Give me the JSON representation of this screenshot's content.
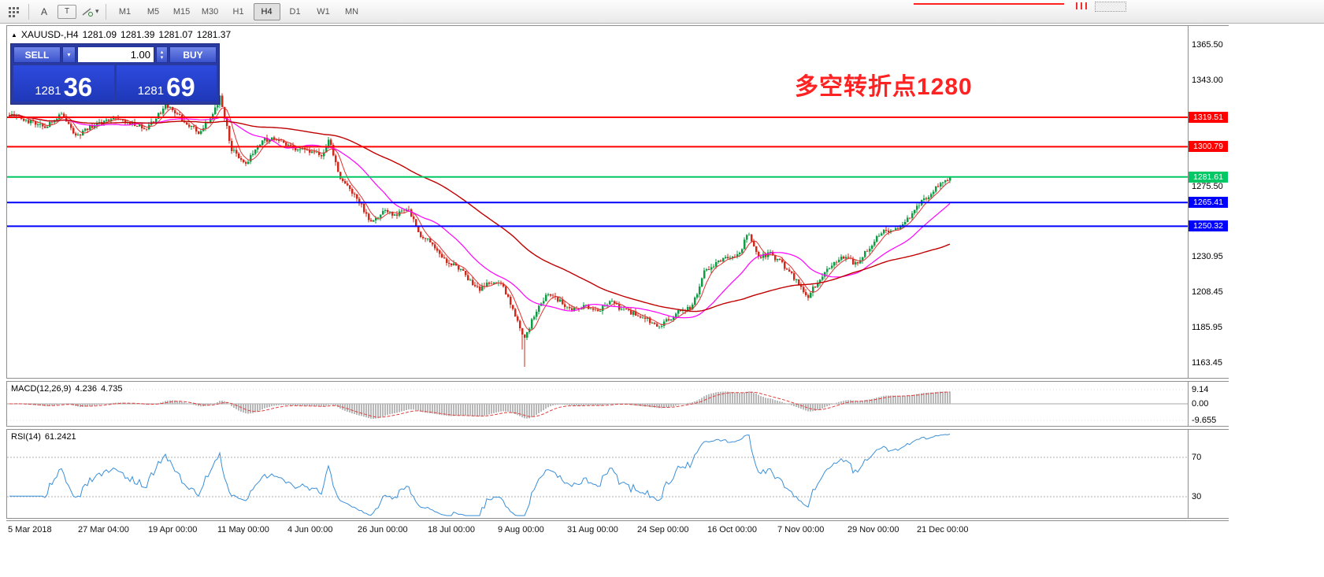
{
  "toolbar": {
    "tool_a": "A",
    "tool_t": "T",
    "timeframes": [
      "M1",
      "M5",
      "M15",
      "M30",
      "H1",
      "H4",
      "D1",
      "W1",
      "MN"
    ],
    "active_timeframe": "H4"
  },
  "icons": {
    "caret_down": "▾",
    "spin_up": "▴",
    "spin_down": "▾",
    "symbol_marker": "▲"
  },
  "chart": {
    "symbol": "XAUUSD-,H4",
    "quote_open": "1281.09",
    "quote_high": "1281.39",
    "quote_low": "1281.07",
    "quote_close": "1281.37",
    "annotation": "多空转折点1280",
    "annotation_color": "#FF2222",
    "trade_panel": {
      "sell_label": "SELL",
      "buy_label": "BUY",
      "lot_value": "1.00",
      "bid_main": "1281",
      "bid_pips": "36",
      "ask_main": "1281",
      "ask_pips": "69"
    }
  },
  "macd_panel": {
    "title": "MACD(12,26,9)",
    "value_main": "4.236",
    "value_signal": "4.735",
    "ticks": [
      "9.14",
      "0.00",
      "-9.655"
    ]
  },
  "rsi_panel": {
    "title": "RSI(14)",
    "value": "61.2421",
    "tick_high": "70",
    "tick_low": "30"
  },
  "time_axis": {
    "labels": [
      "5 Mar 2018",
      "27 Mar 04:00",
      "19 Apr 00:00",
      "11 May 00:00",
      "4 Jun 00:00",
      "26 Jun 00:00",
      "18 Jul 00:00",
      "9 Aug 00:00",
      "31 Aug 00:00",
      "24 Sep 00:00",
      "16 Oct 00:00",
      "7 Nov 00:00",
      "29 Nov 00:00",
      "21 Dec 00:00"
    ]
  },
  "chart_data": {
    "type": "candlestick",
    "title": "XAUUSD-,H4",
    "symbol": "XAUUSD",
    "timeframe": "H4",
    "current_ohlc": {
      "open": 1281.09,
      "high": 1281.39,
      "low": 1281.07,
      "close": 1281.37
    },
    "y_axis": {
      "top_price": 1377.5,
      "bottom_price": 1155.0,
      "visible_ticks": [
        1365.5,
        1343.0,
        1275.5,
        1230.95,
        1208.45,
        1185.95,
        1163.45
      ]
    },
    "x_labels": [
      "5 Mar 2018",
      "27 Mar 04:00",
      "19 Apr 00:00",
      "11 May 00:00",
      "4 Jun 00:00",
      "26 Jun 00:00",
      "18 Jul 00:00",
      "9 Aug 00:00",
      "31 Aug 00:00",
      "24 Sep 00:00",
      "16 Oct 00:00",
      "7 Nov 00:00",
      "29 Nov 00:00",
      "21 Dec 00:00"
    ],
    "levels": [
      {
        "price": 1319.51,
        "color": "#FF0000",
        "type": "resistance"
      },
      {
        "price": 1300.79,
        "color": "#FF0000",
        "type": "resistance"
      },
      {
        "price": 1281.61,
        "color": "#00C864",
        "type": "pivot"
      },
      {
        "price": 1265.41,
        "color": "#0000FF",
        "type": "support"
      },
      {
        "price": 1250.32,
        "color": "#0000FF",
        "type": "support"
      }
    ],
    "price_path": [
      [
        0,
        1321
      ],
      [
        0.017,
        1318
      ],
      [
        0.038,
        1313
      ],
      [
        0.054,
        1322
      ],
      [
        0.071,
        1308
      ],
      [
        0.088,
        1314
      ],
      [
        0.105,
        1318
      ],
      [
        0.126,
        1317
      ],
      [
        0.146,
        1312
      ],
      [
        0.167,
        1327
      ],
      [
        0.184,
        1318
      ],
      [
        0.201,
        1310
      ],
      [
        0.216,
        1321
      ],
      [
        0.224,
        1333
      ],
      [
        0.236,
        1299
      ],
      [
        0.251,
        1290
      ],
      [
        0.268,
        1305
      ],
      [
        0.286,
        1306
      ],
      [
        0.301,
        1300
      ],
      [
        0.318,
        1298
      ],
      [
        0.333,
        1295
      ],
      [
        0.34,
        1307
      ],
      [
        0.35,
        1282
      ],
      [
        0.362,
        1273
      ],
      [
        0.373,
        1265
      ],
      [
        0.385,
        1252
      ],
      [
        0.398,
        1261
      ],
      [
        0.412,
        1257
      ],
      [
        0.423,
        1263
      ],
      [
        0.437,
        1244
      ],
      [
        0.45,
        1239
      ],
      [
        0.463,
        1229
      ],
      [
        0.475,
        1225
      ],
      [
        0.488,
        1217
      ],
      [
        0.5,
        1210
      ],
      [
        0.512,
        1215
      ],
      [
        0.525,
        1212
      ],
      [
        0.536,
        1197
      ],
      [
        0.547,
        1178
      ],
      [
        0.559,
        1196
      ],
      [
        0.572,
        1207
      ],
      [
        0.586,
        1202
      ],
      [
        0.599,
        1197
      ],
      [
        0.613,
        1200
      ],
      [
        0.625,
        1195
      ],
      [
        0.638,
        1203
      ],
      [
        0.651,
        1197
      ],
      [
        0.664,
        1195
      ],
      [
        0.676,
        1192
      ],
      [
        0.689,
        1186
      ],
      [
        0.701,
        1191
      ],
      [
        0.714,
        1197
      ],
      [
        0.726,
        1199
      ],
      [
        0.738,
        1221
      ],
      [
        0.751,
        1226
      ],
      [
        0.763,
        1231
      ],
      [
        0.776,
        1233
      ],
      [
        0.785,
        1246
      ],
      [
        0.797,
        1231
      ],
      [
        0.809,
        1233
      ],
      [
        0.822,
        1226
      ],
      [
        0.835,
        1217
      ],
      [
        0.849,
        1206
      ],
      [
        0.862,
        1217
      ],
      [
        0.875,
        1227
      ],
      [
        0.888,
        1231
      ],
      [
        0.9,
        1226
      ],
      [
        0.913,
        1236
      ],
      [
        0.926,
        1246
      ],
      [
        0.938,
        1248
      ],
      [
        0.951,
        1251
      ],
      [
        0.963,
        1262
      ],
      [
        0.976,
        1269
      ],
      [
        0.988,
        1277
      ],
      [
        1,
        1281.4
      ]
    ],
    "spike_low": [
      0.547,
      1161
    ],
    "colors": {
      "up": "#0E9C44",
      "down": "#CE2A1E",
      "ma_fast": "#E03030",
      "ma_mid": "#FF00FF",
      "ma_slow": "#C00000",
      "macd_hist": "#B8B8B8",
      "macd_signal": "#E04040",
      "rsi": "#3A8FD9"
    },
    "indicators": {
      "ma_periods": [
        6,
        25,
        80
      ],
      "macd": {
        "fast": 12,
        "slow": 26,
        "signal": 9,
        "last_main": 4.236,
        "last_signal": 4.735,
        "scale_ticks": [
          9.14,
          0,
          -9.655
        ]
      },
      "rsi": {
        "period": 14,
        "last": 61.2421,
        "levels": [
          70,
          30
        ]
      }
    }
  }
}
